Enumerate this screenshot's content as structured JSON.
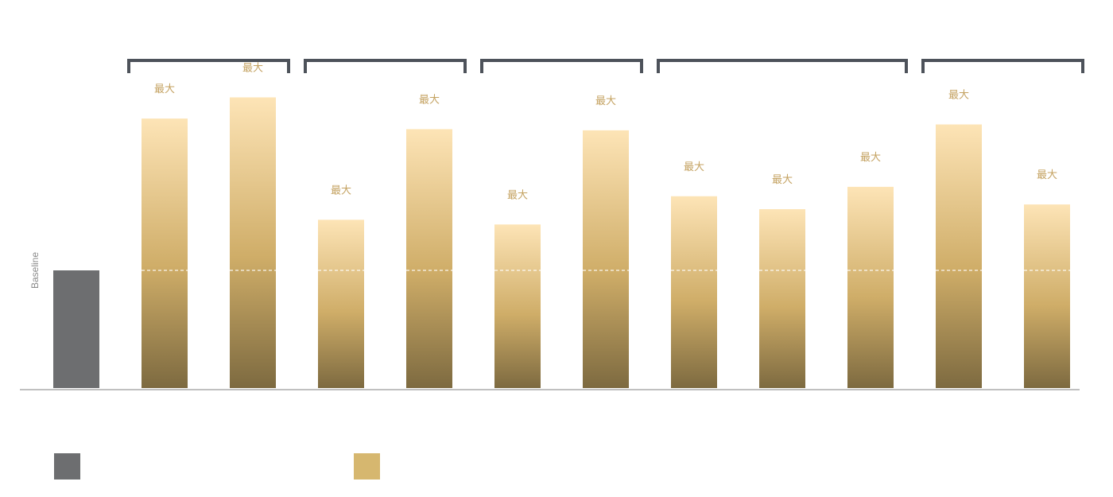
{
  "colors": {
    "baseline_bar": "#6d6e70",
    "gold_top": "#fde4b6",
    "gold_mid": "#cfad68",
    "gold_bottom": "#7d6a40",
    "bracket": "#4d525a",
    "axis": "#9a9a9a",
    "legend_gold": "#d6b76f",
    "label": "#c4a261"
  },
  "chart_data": {
    "type": "bar",
    "baseline": {
      "label": "Baseline",
      "value": 1.0
    },
    "reference_line": 1.0,
    "ylim": [
      0,
      3.2
    ],
    "bars": [
      {
        "label": "最大",
        "value": 2.29
      },
      {
        "label": "最大",
        "value": 2.47
      },
      {
        "label": "最大",
        "value": 1.43
      },
      {
        "label": "最大",
        "value": 2.2
      },
      {
        "label": "最大",
        "value": 1.39
      },
      {
        "label": "最大",
        "value": 2.19
      },
      {
        "label": "最大",
        "value": 1.63
      },
      {
        "label": "最大",
        "value": 1.52
      },
      {
        "label": "最大",
        "value": 1.71
      },
      {
        "label": "最大",
        "value": 2.24
      },
      {
        "label": "最大",
        "value": 1.56
      }
    ],
    "groups": [
      {
        "bars": [
          0,
          1
        ]
      },
      {
        "bars": [
          2,
          3
        ]
      },
      {
        "bars": [
          4,
          5
        ]
      },
      {
        "bars": [
          6,
          7,
          8
        ]
      },
      {
        "bars": [
          9,
          10
        ]
      }
    ],
    "legend": [
      "",
      ""
    ]
  }
}
